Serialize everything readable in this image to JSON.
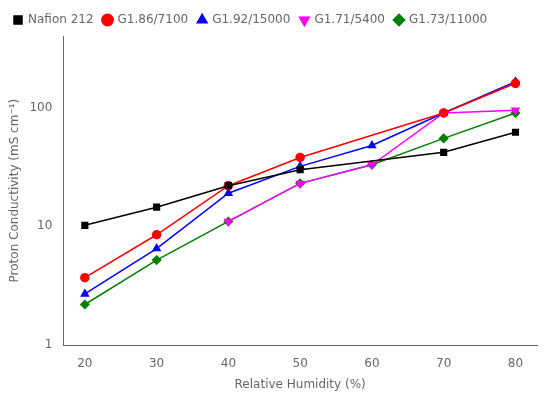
{
  "chart_data": {
    "type": "line",
    "x": [
      20,
      30,
      40,
      50,
      60,
      70,
      80
    ],
    "series": [
      {
        "name": "Nafion 212",
        "color": "#000000",
        "marker": "square",
        "values": [
          10.2,
          14.5,
          22,
          30,
          null,
          42,
          62
        ]
      },
      {
        "name": "G1.86/7100",
        "color": "#ff0000",
        "marker": "circle",
        "values": [
          3.7,
          8.5,
          22,
          38,
          null,
          90,
          160
        ]
      },
      {
        "name": "G1.92/15000",
        "color": "#0000ff",
        "marker": "triangle-up",
        "values": [
          2.7,
          6.5,
          19,
          32,
          48,
          90,
          165
        ]
      },
      {
        "name": "G1.71/5400",
        "color": "#ff00ff",
        "marker": "triangle-down",
        "values": [
          null,
          null,
          11,
          23,
          33,
          90,
          95
        ]
      },
      {
        "name": "G1.73/11000",
        "color": "#008000",
        "marker": "diamond",
        "values": [
          2.2,
          5.2,
          11,
          23,
          33,
          55,
          90
        ]
      }
    ],
    "xlabel": "Relative Humidity (%)",
    "ylabel": "Proton Conductivity (mS cm⁻¹)",
    "log": "y",
    "xlim": [
      17,
      83
    ],
    "xticks": [
      20,
      30,
      40,
      50,
      60,
      70,
      80
    ],
    "ylim": [
      1,
      400
    ],
    "yticks": [
      1,
      10,
      100
    ],
    "grid": false,
    "legend": "upper left"
  }
}
